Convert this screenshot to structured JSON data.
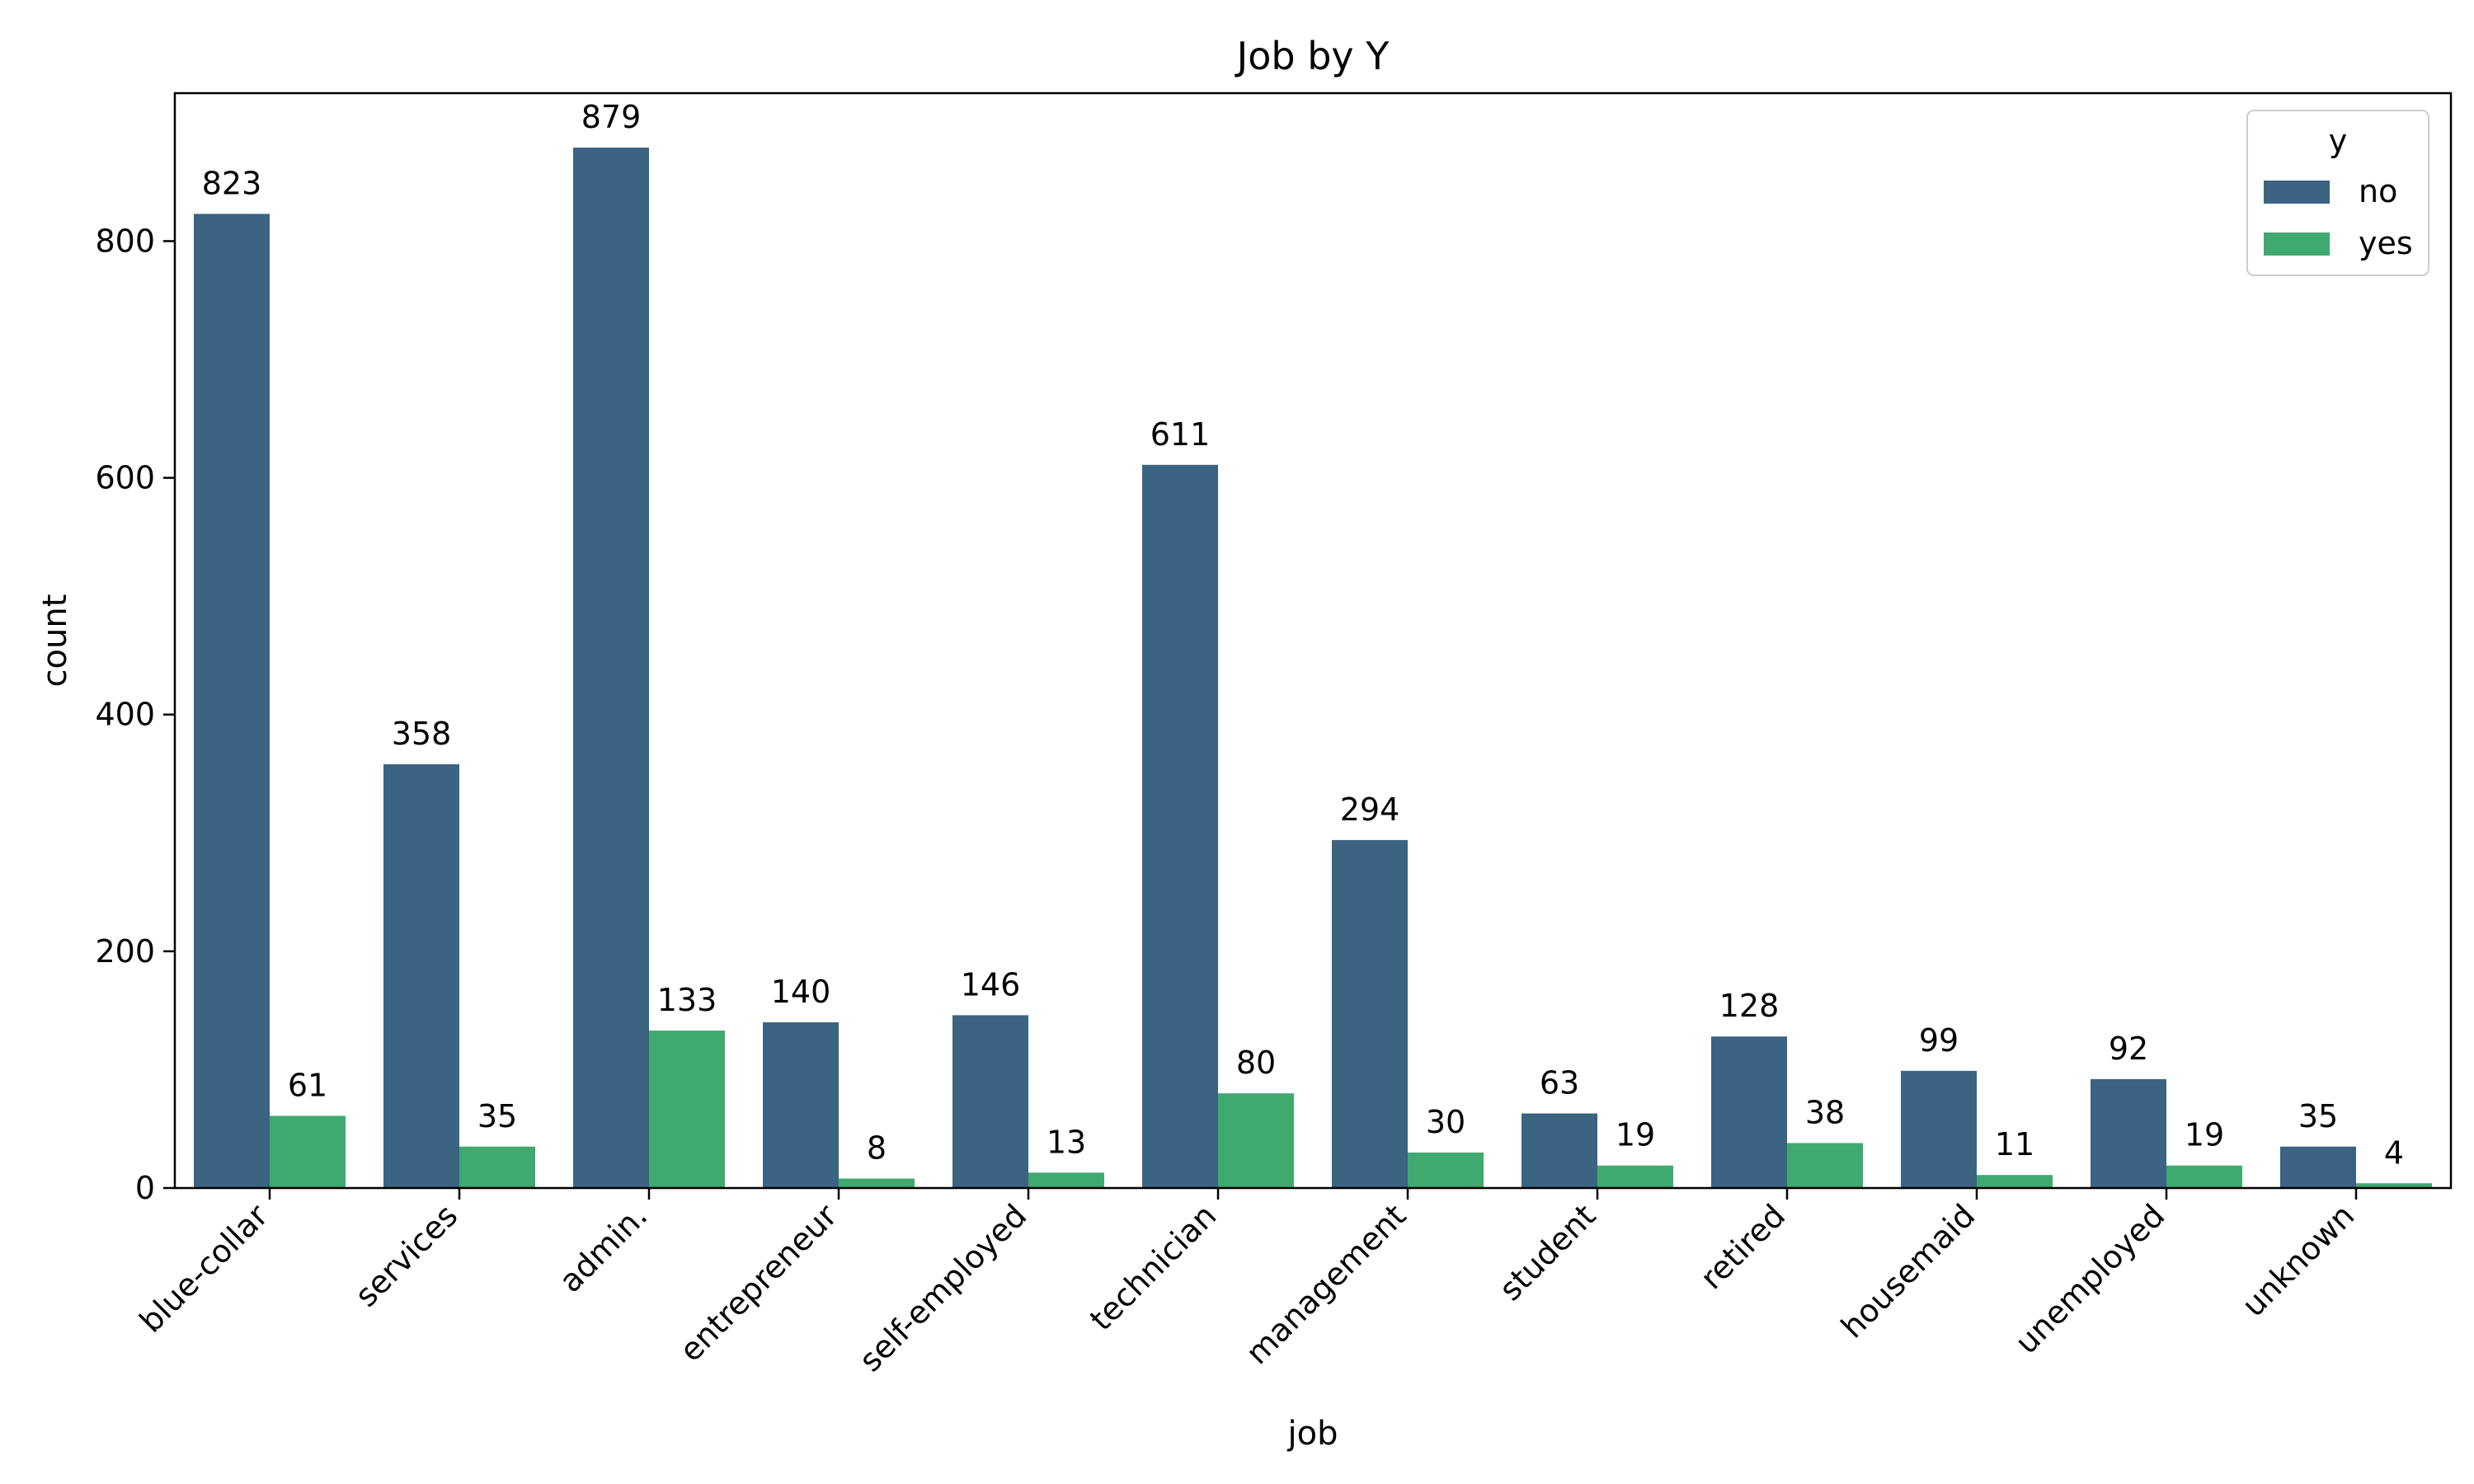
{
  "chart_data": {
    "type": "bar",
    "title": "Job by Y",
    "xlabel": "job",
    "ylabel": "count",
    "ylim": [
      0,
      925
    ],
    "yticks": [
      0,
      200,
      400,
      600,
      800
    ],
    "categories": [
      "blue-collar",
      "services",
      "admin.",
      "entrepreneur",
      "self-employed",
      "technician",
      "management",
      "student",
      "retired",
      "housemaid",
      "unemployed",
      "unknown"
    ],
    "series": [
      {
        "name": "no",
        "color": "#3b6382",
        "values": [
          823,
          358,
          879,
          140,
          146,
          611,
          294,
          63,
          128,
          99,
          92,
          35
        ]
      },
      {
        "name": "yes",
        "color": "#3fa96f",
        "values": [
          61,
          35,
          133,
          8,
          13,
          80,
          30,
          19,
          38,
          11,
          19,
          4
        ]
      }
    ],
    "legend": {
      "title": "y",
      "position": "top-right"
    },
    "grid": false
  }
}
